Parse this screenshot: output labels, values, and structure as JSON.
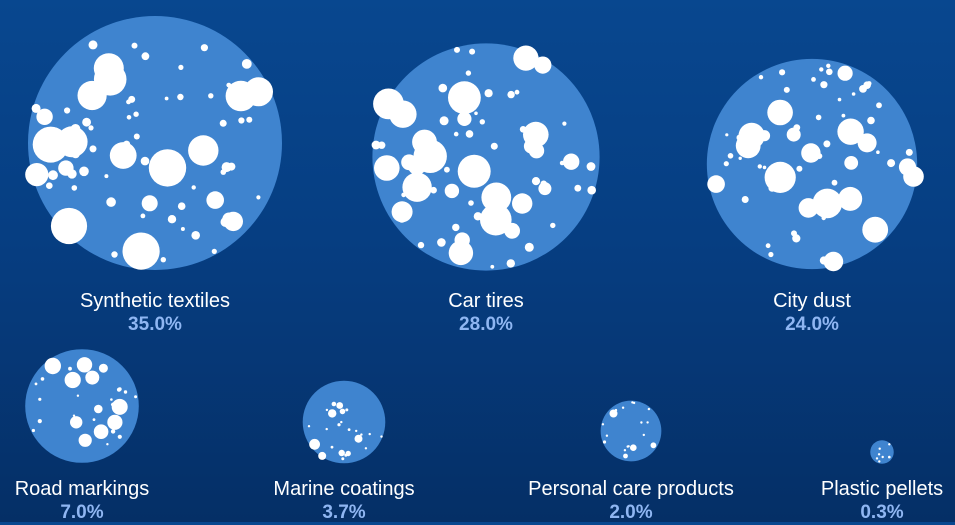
{
  "colors": {
    "background_top": "#08478f",
    "background_bottom": "#052f66",
    "circle_fill": "#3f84cf",
    "particle": "#ffffff",
    "label_text": "#ffffff",
    "value_text": "#8fb6f2"
  },
  "chart_data": {
    "type": "bubble",
    "unit": "%",
    "categories": [
      "Synthetic textiles",
      "Car tires",
      "City dust",
      "Road markings",
      "Marine coatings",
      "Personal care products",
      "Plastic pellets"
    ],
    "values": [
      35.0,
      28.0,
      24.0,
      7.0,
      3.7,
      2.0,
      0.3
    ],
    "value_labels": [
      "35.0%",
      "28.0%",
      "24.0%",
      "7.0%",
      "3.7%",
      "2.0%",
      "0.3%"
    ]
  }
}
